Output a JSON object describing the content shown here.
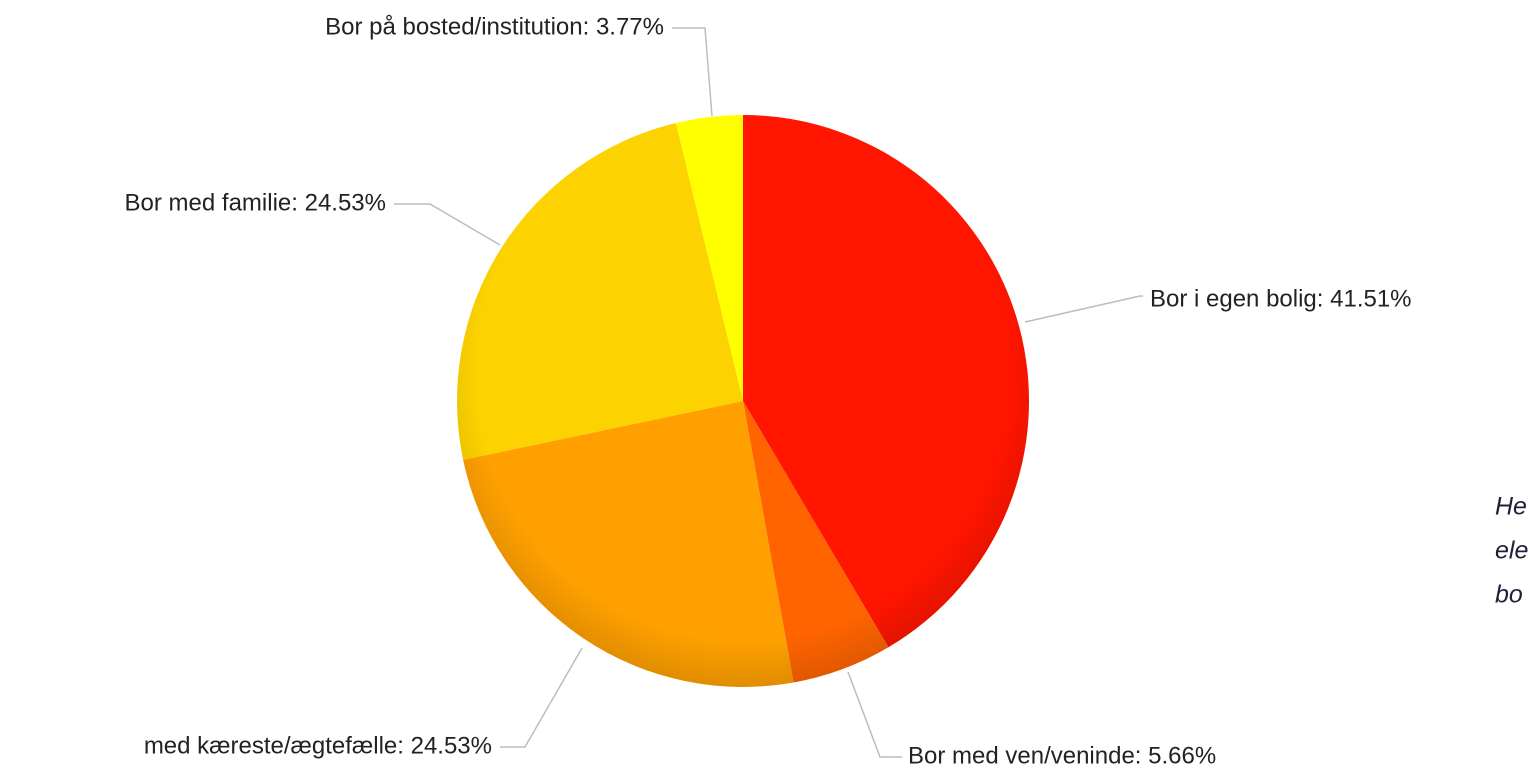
{
  "chart_data": {
    "type": "pie",
    "labels": [
      "Bor i egen bolig: 41.51%",
      "Bor med ven/veninde: 5.66%",
      "med kæreste/ægtefælle: 24.53%",
      "Bor med familie: 24.53%",
      "Bor på bosted/institution: 3.77%"
    ],
    "values": [
      41.51,
      5.66,
      24.53,
      24.53,
      3.77
    ],
    "colors": [
      "#ff1500",
      "#ff6400",
      "#ffa000",
      "#fcd200",
      "#ffff00"
    ],
    "annotations": [
      "He",
      "ele",
      "bo"
    ]
  }
}
